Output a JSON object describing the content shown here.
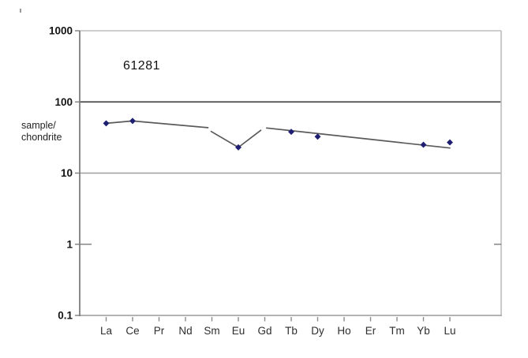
{
  "chart_data": {
    "type": "line",
    "title": "61281",
    "ylabel_lines": [
      "sample/",
      "chondrite"
    ],
    "yscale": "log",
    "ylim": [
      0.1,
      1000
    ],
    "y_tick_labels": [
      "1000",
      "100",
      "10",
      "1",
      "0.1"
    ],
    "y_tick_values": [
      1000,
      100,
      10,
      1,
      0.1
    ],
    "gridline_values": [
      100,
      10
    ],
    "inner_tick_value": 1,
    "categories": [
      "La",
      "Ce",
      "Pr",
      "Nd",
      "Sm",
      "Eu",
      "Gd",
      "Tb",
      "Dy",
      "Ho",
      "Er",
      "Tm",
      "Yb",
      "Lu"
    ],
    "markers": [
      {
        "element": "La",
        "value": 50
      },
      {
        "element": "Ce",
        "value": 54
      },
      {
        "element": "Eu",
        "value": 23
      },
      {
        "element": "Tb",
        "value": 38
      },
      {
        "element": "Dy",
        "value": 32.5
      },
      {
        "element": "Yb",
        "value": 25
      },
      {
        "element": "Lu",
        "value": 27
      }
    ],
    "line_segments": [
      [
        [
          0,
          50
        ],
        [
          1,
          54
        ],
        [
          3.85,
          43.5
        ]
      ],
      [
        [
          3.97,
          38.5
        ],
        [
          5,
          23
        ],
        [
          5.85,
          40
        ]
      ],
      [
        [
          6.07,
          43
        ],
        [
          13,
          22.5
        ]
      ]
    ],
    "legend": "none",
    "grid": "horizontal-partial",
    "colors": {
      "marker": "#1f1f72",
      "data_line": "#5a5a5a",
      "grid_dark": "#4a4a4a",
      "grid_light": "#9e9e9e",
      "axis": "#7d7d7d",
      "border": "#bdbdbd",
      "tick": "#8a8a8a",
      "tick_text": "#141414",
      "category_text": "#2e2e2e"
    }
  }
}
